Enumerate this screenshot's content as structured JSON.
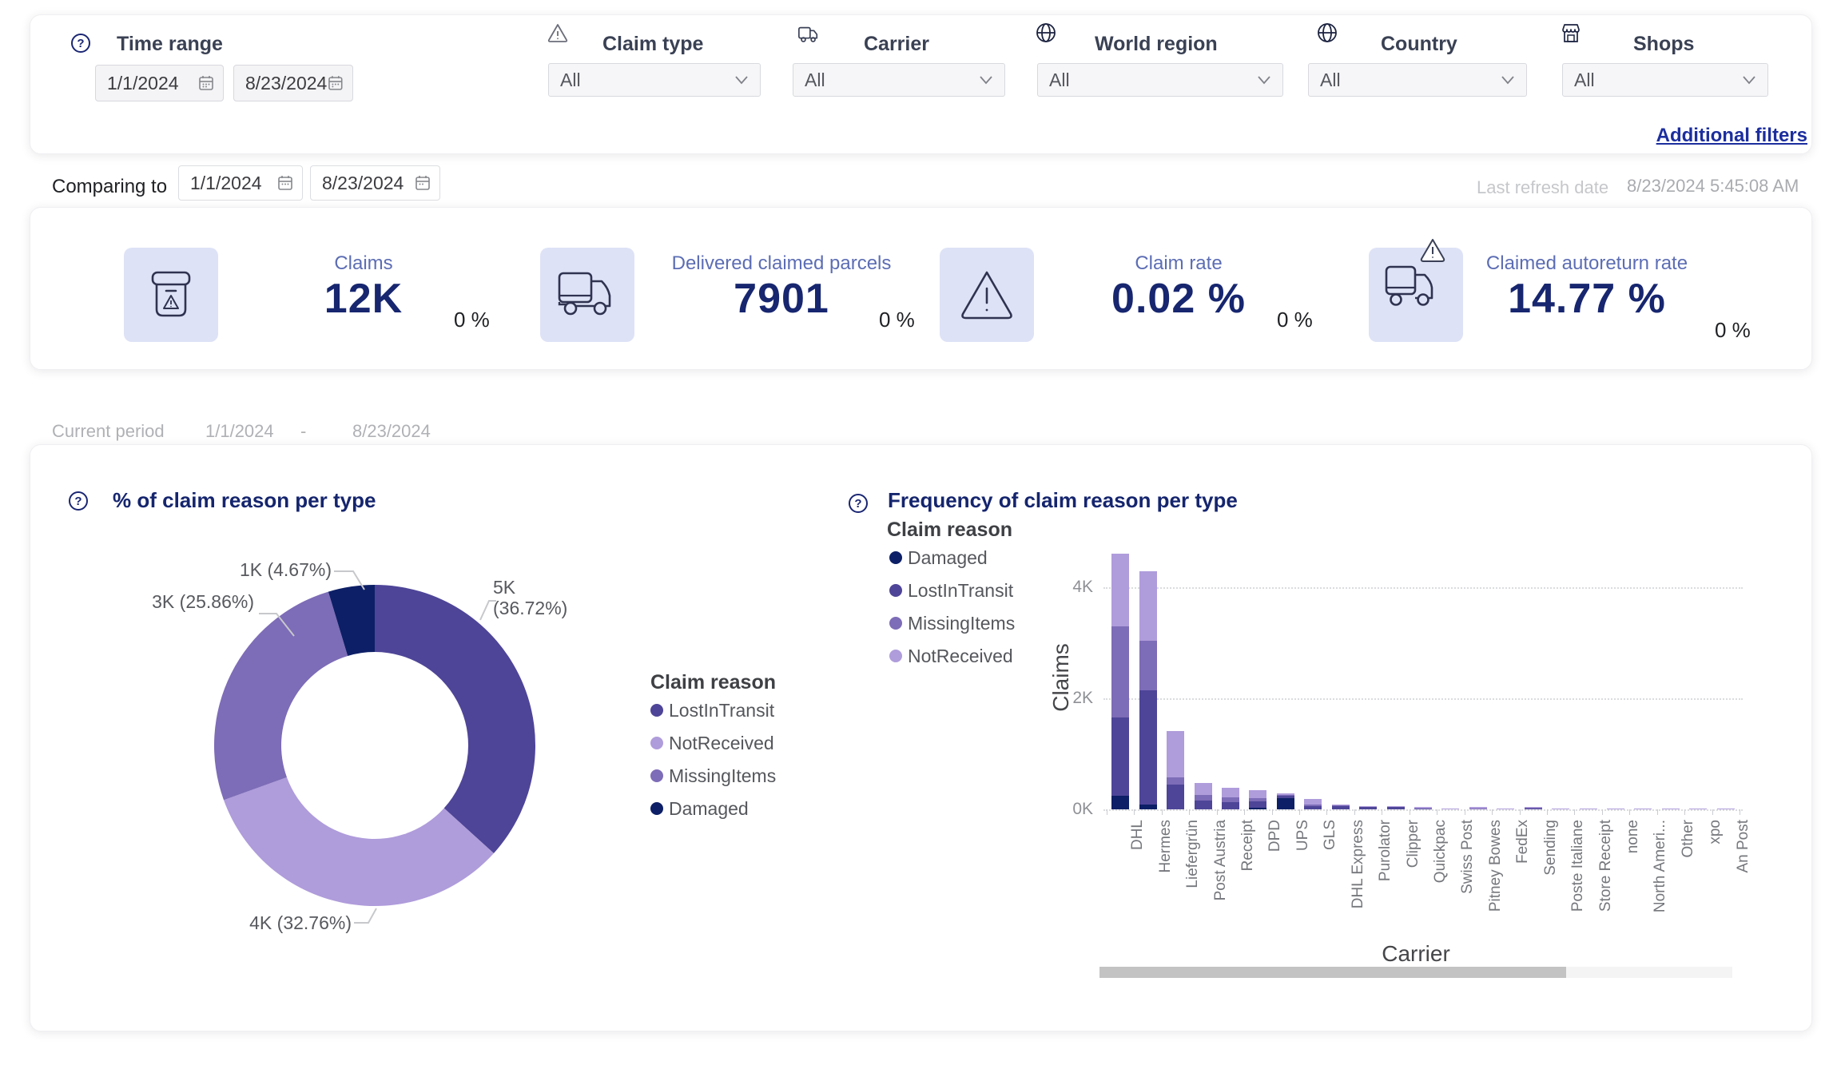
{
  "filters": {
    "time_range": {
      "label": "Time range",
      "from": "1/1/2024",
      "to": "8/23/2024"
    },
    "claim_type": {
      "label": "Claim type",
      "value": "All"
    },
    "carrier": {
      "label": "Carrier",
      "value": "All"
    },
    "world_region": {
      "label": "World region",
      "value": "All"
    },
    "country": {
      "label": "Country",
      "value": "All"
    },
    "shops": {
      "label": "Shops",
      "value": "All"
    },
    "additional_filters_label": "Additional filters"
  },
  "comparing": {
    "label": "Comparing to",
    "from": "1/1/2024",
    "to": "8/23/2024"
  },
  "refresh": {
    "label": "Last refresh date",
    "value": "8/23/2024 5:45:08 AM"
  },
  "kpis": [
    {
      "icon": "claims-box-icon",
      "label": "Claims",
      "value": "12K",
      "delta": "0 %"
    },
    {
      "icon": "truck-icon",
      "label": "Delivered claimed parcels",
      "value": "7901",
      "delta": "0 %"
    },
    {
      "icon": "warning-icon",
      "label": "Claim rate",
      "value": "0.02 %",
      "delta": "0 %"
    },
    {
      "icon": "truck-warning-icon",
      "label": "Claimed autoreturn rate",
      "value": "14.77 %",
      "delta": "0 %"
    }
  ],
  "current_period": {
    "label": "Current period",
    "from": "1/1/2024",
    "sep": "-",
    "to": "8/23/2024"
  },
  "chart_data": [
    {
      "type": "pie",
      "subtype": "donut",
      "title": "% of claim reason per type",
      "legend_title": "Claim reason",
      "legend_order": [
        "LostInTransit",
        "NotReceived",
        "MissingItems",
        "Damaged"
      ],
      "slices": [
        {
          "name": "LostInTransit",
          "value": 5000,
          "pct": 36.72,
          "label": "5K (36.72%)",
          "color": "#4e4598"
        },
        {
          "name": "NotReceived",
          "value": 4000,
          "pct": 32.76,
          "label": "4K (32.76%)",
          "color": "#af9cdb"
        },
        {
          "name": "MissingItems",
          "value": 3000,
          "pct": 25.86,
          "label": "3K (25.86%)",
          "color": "#7d6cb7"
        },
        {
          "name": "Damaged",
          "value": 1000,
          "pct": 4.67,
          "label": "1K (4.67%)",
          "color": "#0d1f66"
        }
      ]
    },
    {
      "type": "bar",
      "stacked": true,
      "title": "Frequency of claim reason per type",
      "legend_title": "Claim reason",
      "legend_order": [
        "Damaged",
        "LostInTransit",
        "MissingItems",
        "NotReceived"
      ],
      "xlabel": "Carrier",
      "ylabel": "Claims",
      "yticks": [
        "0K",
        "2K",
        "4K"
      ],
      "ylim": [
        0,
        4800
      ],
      "grid": "dotted-horizontal",
      "colors": {
        "Damaged": "#0d1f66",
        "LostInTransit": "#4e4598",
        "MissingItems": "#7d6cb7",
        "NotReceived": "#af9cdb"
      },
      "categories": [
        "DHL",
        "Hermes",
        "Liefergrün",
        "Post Austria",
        "Receipt",
        "DPD",
        "UPS",
        "GLS",
        "DHL Express",
        "Purolator",
        "Clipper",
        "Quickpac",
        "Swiss Post",
        "Pitney Bowes",
        "FedEx",
        "Sending",
        "Poste Italiane",
        "Store Receipt",
        "none",
        "North Ameri...",
        "Other",
        "xpo",
        "An Post"
      ],
      "series": [
        {
          "name": "Damaged",
          "values": [
            250,
            90,
            0,
            0,
            0,
            30,
            200,
            0,
            0,
            0,
            0,
            0,
            0,
            0,
            0,
            0,
            0,
            0,
            0,
            0,
            0,
            0,
            0
          ]
        },
        {
          "name": "LostInTransit",
          "values": [
            1400,
            2050,
            450,
            160,
            130,
            120,
            40,
            60,
            60,
            50,
            40,
            5,
            0,
            0,
            0,
            5,
            0,
            0,
            0,
            0,
            0,
            0,
            0
          ]
        },
        {
          "name": "MissingItems",
          "values": [
            1650,
            900,
            130,
            100,
            90,
            50,
            10,
            20,
            5,
            0,
            0,
            0,
            0,
            5,
            0,
            5,
            0,
            0,
            0,
            0,
            0,
            0,
            0
          ]
        },
        {
          "name": "NotReceived",
          "values": [
            1300,
            1250,
            830,
            210,
            170,
            140,
            30,
            110,
            10,
            5,
            10,
            35,
            20,
            25,
            15,
            20,
            15,
            15,
            10,
            10,
            10,
            8,
            8
          ]
        }
      ]
    }
  ]
}
